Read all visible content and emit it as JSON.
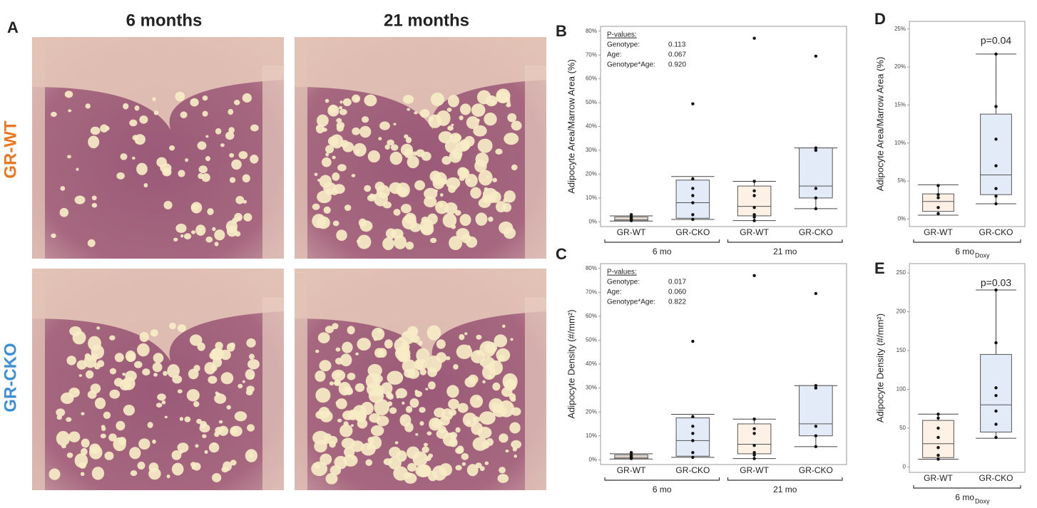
{
  "figure": {
    "panel_labels": [
      "A",
      "B",
      "C",
      "D",
      "E"
    ],
    "columns": [
      "6 months",
      "21 months"
    ],
    "rows": [
      "GR-WT",
      "GR-CKO"
    ]
  },
  "chart_data": [
    {
      "type": "box",
      "ylabel": "Adipocyte Area/Marrow Area (%)",
      "categories": [
        "GR-WT",
        "GR-CKO",
        "GR-WT",
        "GR-CKO"
      ],
      "groups": [
        {
          "name": "6 mo"
        },
        {
          "name": "21 mo"
        }
      ],
      "boxes": [
        {
          "whislo": 0.3,
          "q1": 0.5,
          "med": 1,
          "q3": 2,
          "whishi": 2.5,
          "points": [
            0.5,
            1,
            1,
            1.5,
            2,
            3
          ],
          "color": "#fdf0e4"
        },
        {
          "whislo": 1,
          "q1": 1.5,
          "med": 8,
          "q3": 17.5,
          "whishi": 19,
          "points": [
            49.5,
            18,
            14,
            11,
            8,
            3,
            1
          ],
          "color": "#e4ebf8"
        },
        {
          "whislo": 0.5,
          "q1": 2.5,
          "med": 6.5,
          "q3": 15,
          "whishi": 17,
          "points": [
            77,
            17,
            13,
            11,
            6,
            3,
            2,
            0.5
          ],
          "color": "#fdf0e4"
        },
        {
          "whislo": 5.5,
          "q1": 10,
          "med": 15,
          "q3": 31,
          "whishi": 31,
          "points": [
            69.5,
            31,
            30,
            14,
            10,
            5.5
          ],
          "color": "#e4ebf8"
        }
      ],
      "ylim": [
        -2,
        82
      ],
      "yticks": [
        {
          "value": 0,
          "label": "0%"
        },
        {
          "value": 10,
          "label": "10%"
        },
        {
          "value": 20,
          "label": "20%"
        },
        {
          "value": 30,
          "label": "30%"
        },
        {
          "value": 40,
          "label": "40%"
        },
        {
          "value": 50,
          "label": "50%"
        },
        {
          "value": 60,
          "label": "60%"
        },
        {
          "value": 70,
          "label": "70%"
        },
        {
          "value": 80,
          "label": "80%"
        }
      ],
      "pvalues": {
        "title": "P-values:",
        "rows": [
          [
            "Genotype:",
            "0.113"
          ],
          [
            "Age:",
            "0.067"
          ],
          [
            "Genotype*Age:",
            "0.920"
          ]
        ]
      }
    },
    {
      "type": "box",
      "ylabel": "Adipocyte Density (#/mm²)",
      "categories": [
        "GR-WT",
        "GR-CKO",
        "GR-WT",
        "GR-CKO"
      ],
      "groups": [
        {
          "name": "6 mo"
        },
        {
          "name": "21 mo"
        }
      ],
      "boxes": [
        {
          "whislo": 0.3,
          "q1": 0.5,
          "med": 1,
          "q3": 2,
          "whishi": 2.5,
          "points": [
            0.5,
            1,
            1,
            1.5,
            2,
            3
          ],
          "color": "#fdf0e4"
        },
        {
          "whislo": 1,
          "q1": 1.5,
          "med": 8,
          "q3": 17.5,
          "whishi": 19,
          "points": [
            49.5,
            18,
            14,
            11,
            8,
            3,
            1
          ],
          "color": "#e4ebf8"
        },
        {
          "whislo": 0.5,
          "q1": 2.5,
          "med": 6.5,
          "q3": 15,
          "whishi": 17,
          "points": [
            77,
            17,
            13,
            11,
            6,
            3,
            2,
            0.5
          ],
          "color": "#fdf0e4"
        },
        {
          "whislo": 5.5,
          "q1": 10,
          "med": 15,
          "q3": 31,
          "whishi": 31,
          "points": [
            69.5,
            31,
            30,
            14,
            10,
            5.5
          ],
          "color": "#e4ebf8"
        }
      ],
      "ylim": [
        -2,
        82
      ],
      "yticks": [
        {
          "value": 0,
          "label": "0%"
        },
        {
          "value": 10,
          "label": "10%"
        },
        {
          "value": 20,
          "label": "20%"
        },
        {
          "value": 30,
          "label": "30%"
        },
        {
          "value": 40,
          "label": "40%"
        },
        {
          "value": 50,
          "label": "50%"
        },
        {
          "value": 60,
          "label": "60%"
        },
        {
          "value": 70,
          "label": "70%"
        },
        {
          "value": 80,
          "label": "80%"
        }
      ],
      "pvalues": {
        "title": "P-values:",
        "rows": [
          [
            "Genotype:",
            "0.017"
          ],
          [
            "Age:",
            "0.060"
          ],
          [
            "Genotype*Age:",
            "0.822"
          ]
        ]
      }
    },
    {
      "type": "box",
      "ylabel": "Adipocyte Area/Marrow Area (%)",
      "categories": [
        "GR-WT",
        "GR-CKO"
      ],
      "groups": [
        {
          "name": "6 mo",
          "subscript": "Doxy"
        }
      ],
      "boxes": [
        {
          "whislo": 0.5,
          "q1": 1,
          "med": 2.3,
          "q3": 3.3,
          "whishi": 4.5,
          "points": [
            4.4,
            3.2,
            2.8,
            1.5,
            0.7
          ],
          "color": "#fdf0e4"
        },
        {
          "whislo": 2,
          "q1": 3.2,
          "med": 5.8,
          "q3": 13.8,
          "whishi": 21.7,
          "points": [
            21.7,
            14.8,
            10.5,
            7,
            4,
            3,
            2
          ],
          "color": "#e4ebf8"
        }
      ],
      "ylim": [
        -1,
        26
      ],
      "yticks": [
        {
          "value": 0,
          "label": "0%"
        },
        {
          "value": 5,
          "label": "5%"
        },
        {
          "value": 10,
          "label": "10%"
        },
        {
          "value": 15,
          "label": "15%"
        },
        {
          "value": 20,
          "label": "20%"
        },
        {
          "value": 25,
          "label": "25%"
        }
      ],
      "annotation": "p=0.04"
    },
    {
      "type": "box",
      "ylabel": "Adipocyte Density (#/mm²)",
      "categories": [
        "GR-WT",
        "GR-CKO"
      ],
      "groups": [
        {
          "name": "6 mo",
          "subscript": "Doxy"
        }
      ],
      "boxes": [
        {
          "whislo": 10,
          "q1": 12,
          "med": 30,
          "q3": 60,
          "whishi": 68,
          "points": [
            68,
            63,
            50,
            38,
            25,
            15,
            10
          ],
          "color": "#fdf0e4"
        },
        {
          "whislo": 37,
          "q1": 45,
          "med": 80,
          "q3": 145,
          "whishi": 228,
          "points": [
            228,
            160,
            102,
            92,
            72,
            55,
            38
          ],
          "color": "#e4ebf8"
        }
      ],
      "ylim": [
        -7,
        262
      ],
      "yticks": [
        0,
        50,
        100,
        150,
        200,
        250
      ],
      "annotation": "p=0.03"
    }
  ]
}
